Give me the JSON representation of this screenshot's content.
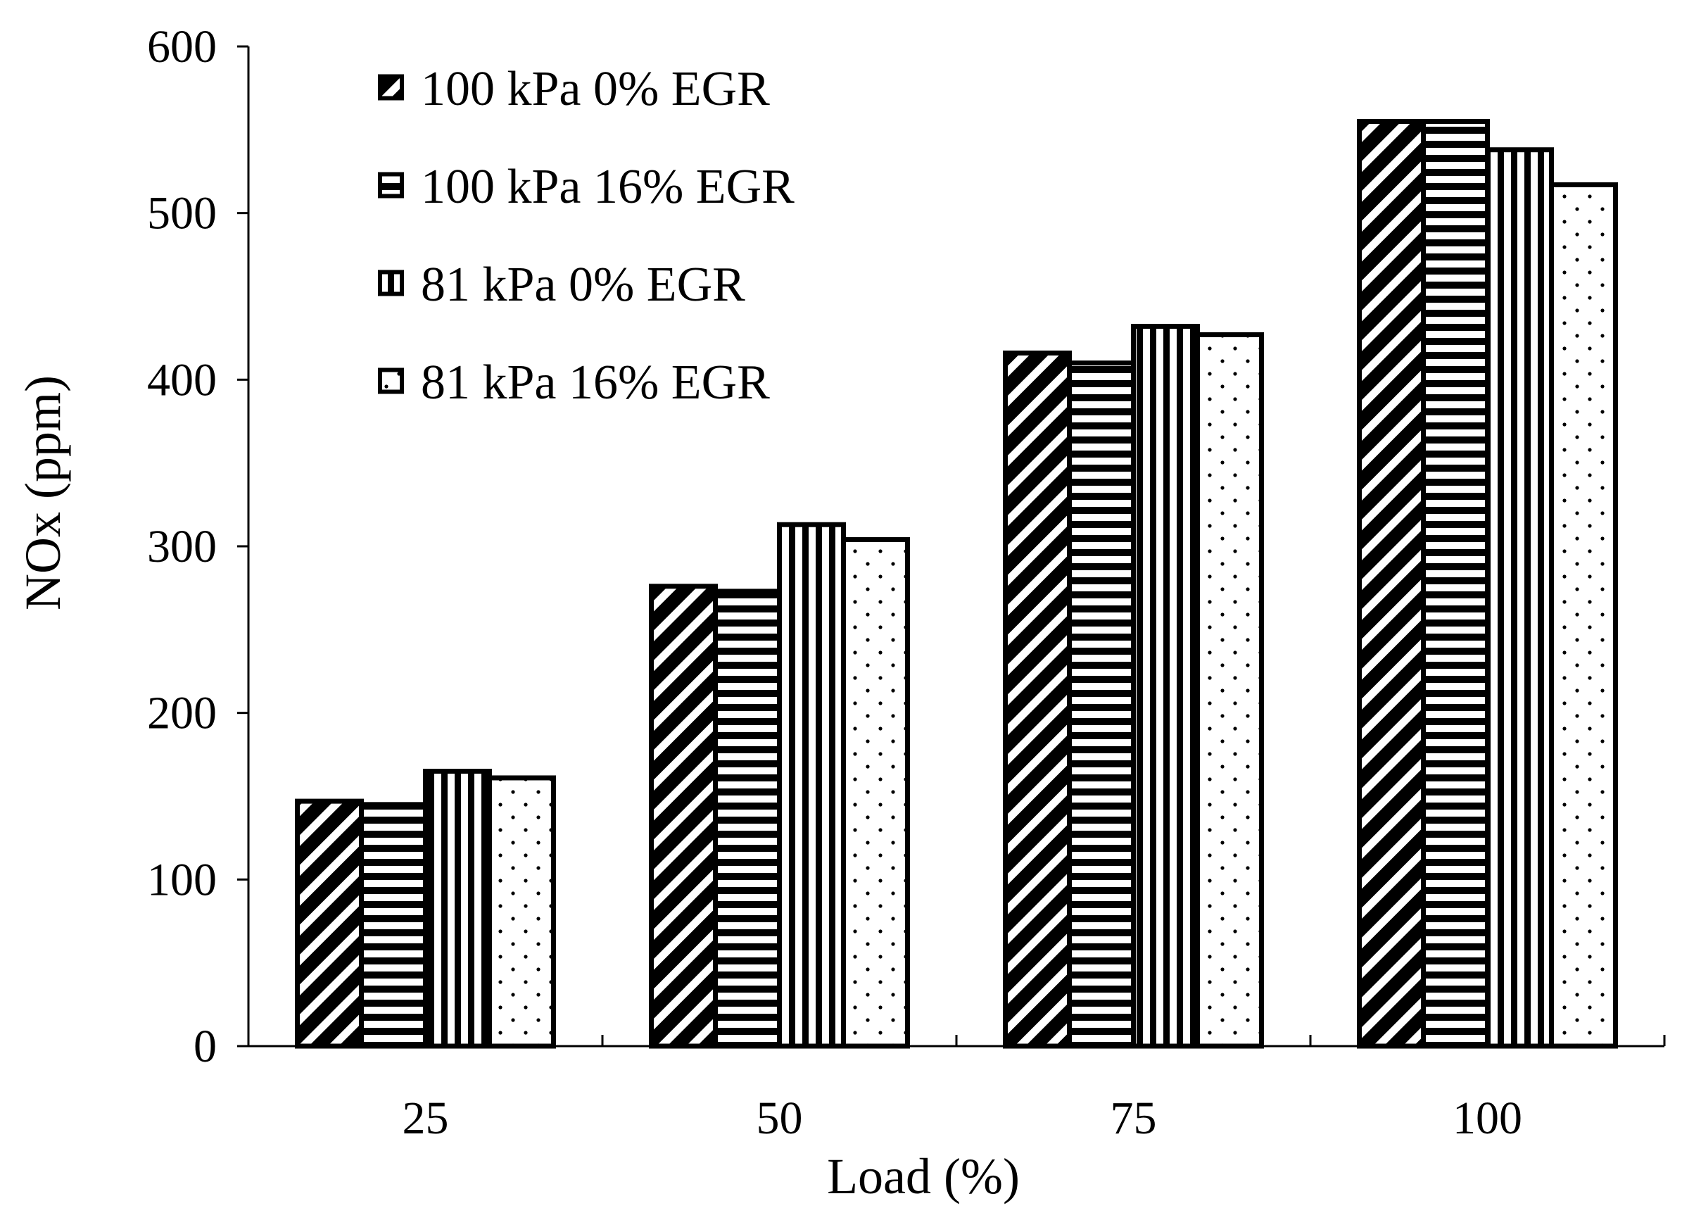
{
  "chart_data": {
    "type": "bar",
    "title": "",
    "xlabel": "Load (%)",
    "ylabel": "NOx (ppm)",
    "categories": [
      "25",
      "50",
      "75",
      "100"
    ],
    "ylim": [
      0,
      600
    ],
    "yticks": [
      "0",
      "100",
      "200",
      "300",
      "400",
      "500",
      "600"
    ],
    "grid": false,
    "legend_position": "top-left",
    "series": [
      {
        "name": "100 kPa 0% EGR",
        "pattern": "diagonal-stripes",
        "values": [
          147,
          276,
          416,
          555
        ]
      },
      {
        "name": "100 kPa 16% EGR",
        "pattern": "horizontal-stripes",
        "values": [
          145,
          273,
          410,
          555
        ]
      },
      {
        "name": "81 kPa 0% EGR",
        "pattern": "vertical-stripes",
        "values": [
          165,
          313,
          432,
          538
        ]
      },
      {
        "name": "81 kPa 16% EGR",
        "pattern": "dots",
        "values": [
          161,
          304,
          427,
          517
        ]
      }
    ]
  }
}
